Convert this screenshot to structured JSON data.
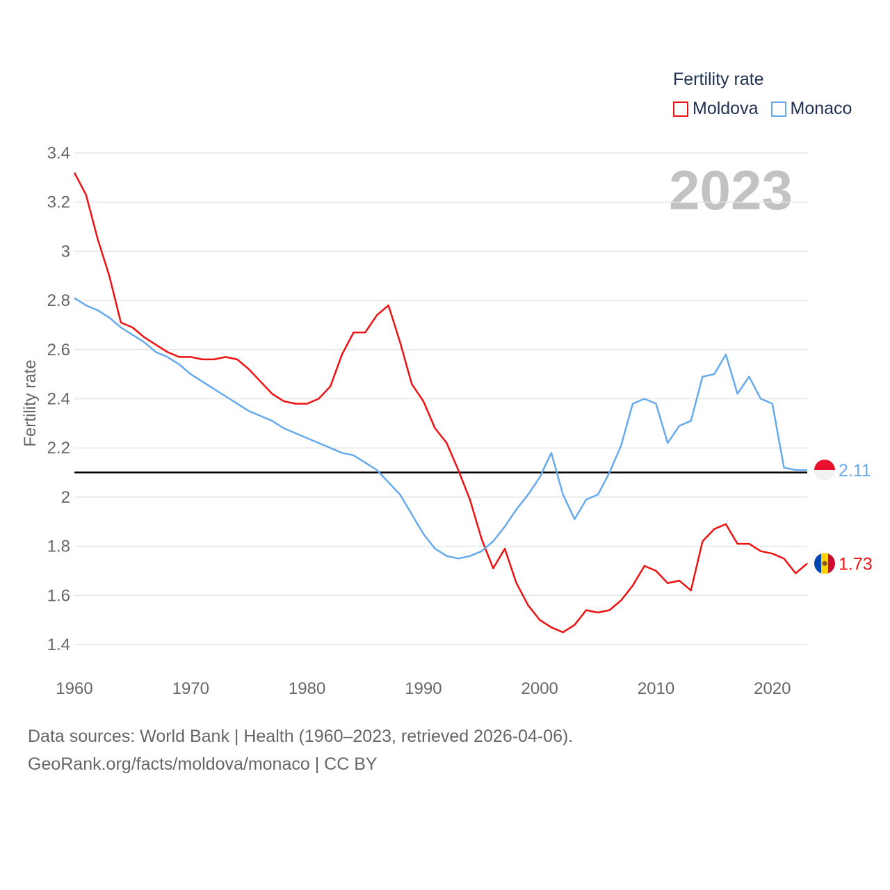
{
  "legend": {
    "title": "Fertility rate",
    "items": [
      {
        "name": "Moldova",
        "color": "#ee1111"
      },
      {
        "name": "Monaco",
        "color": "#66aaee"
      }
    ]
  },
  "year_label": "2023",
  "footer": {
    "line1": "Data sources: World Bank | Health (1960–2023, retrieved 2026-04-06).",
    "line2": "GeoRank.org/facts/moldova/monaco | CC BY"
  },
  "end_labels": {
    "moldova": "1.73",
    "monaco": "2.11"
  },
  "chart_data": {
    "type": "line",
    "title": "Fertility rate",
    "xlabel": "",
    "ylabel": "Fertility rate",
    "xlim": [
      1960,
      2023
    ],
    "ylim": [
      1.3,
      3.45
    ],
    "x_ticks": [
      1960,
      1970,
      1980,
      1990,
      2000,
      2010,
      2020
    ],
    "y_ticks": [
      1.4,
      1.6,
      1.8,
      2,
      2.2,
      2.4,
      2.6,
      2.8,
      3,
      3.2,
      3.4
    ],
    "reference_line": 2.1,
    "x": [
      1960,
      1961,
      1962,
      1963,
      1964,
      1965,
      1966,
      1967,
      1968,
      1969,
      1970,
      1971,
      1972,
      1973,
      1974,
      1975,
      1976,
      1977,
      1978,
      1979,
      1980,
      1981,
      1982,
      1983,
      1984,
      1985,
      1986,
      1987,
      1988,
      1989,
      1990,
      1991,
      1992,
      1993,
      1994,
      1995,
      1996,
      1997,
      1998,
      1999,
      2000,
      2001,
      2002,
      2003,
      2004,
      2005,
      2006,
      2007,
      2008,
      2009,
      2010,
      2011,
      2012,
      2013,
      2014,
      2015,
      2016,
      2017,
      2018,
      2019,
      2020,
      2021,
      2022,
      2023
    ],
    "series": [
      {
        "name": "Moldova",
        "color": "#ee1111",
        "values": [
          3.32,
          3.23,
          3.05,
          2.9,
          2.71,
          2.69,
          2.65,
          2.62,
          2.59,
          2.57,
          2.57,
          2.56,
          2.56,
          2.57,
          2.56,
          2.52,
          2.47,
          2.42,
          2.39,
          2.38,
          2.38,
          2.4,
          2.45,
          2.58,
          2.67,
          2.67,
          2.74,
          2.78,
          2.63,
          2.46,
          2.39,
          2.28,
          2.22,
          2.11,
          1.99,
          1.83,
          1.71,
          1.79,
          1.65,
          1.56,
          1.5,
          1.47,
          1.45,
          1.48,
          1.54,
          1.53,
          1.54,
          1.58,
          1.64,
          1.72,
          1.7,
          1.65,
          1.66,
          1.62,
          1.82,
          1.87,
          1.89,
          1.81,
          1.81,
          1.78,
          1.77,
          1.75,
          1.69,
          1.73
        ]
      },
      {
        "name": "Monaco",
        "color": "#66aaee",
        "values": [
          2.81,
          2.78,
          2.76,
          2.73,
          2.69,
          2.66,
          2.63,
          2.59,
          2.57,
          2.54,
          2.5,
          2.47,
          2.44,
          2.41,
          2.38,
          2.35,
          2.33,
          2.31,
          2.28,
          2.26,
          2.24,
          2.22,
          2.2,
          2.18,
          2.17,
          2.14,
          2.11,
          2.06,
          2.01,
          1.93,
          1.85,
          1.79,
          1.76,
          1.75,
          1.76,
          1.78,
          1.82,
          1.88,
          1.95,
          2.01,
          2.08,
          2.18,
          2.01,
          1.91,
          1.99,
          2.01,
          2.1,
          2.21,
          2.38,
          2.4,
          2.38,
          2.22,
          2.29,
          2.31,
          2.49,
          2.5,
          2.58,
          2.42,
          2.49,
          2.4,
          2.38,
          2.12,
          2.11,
          2.11
        ]
      }
    ]
  }
}
